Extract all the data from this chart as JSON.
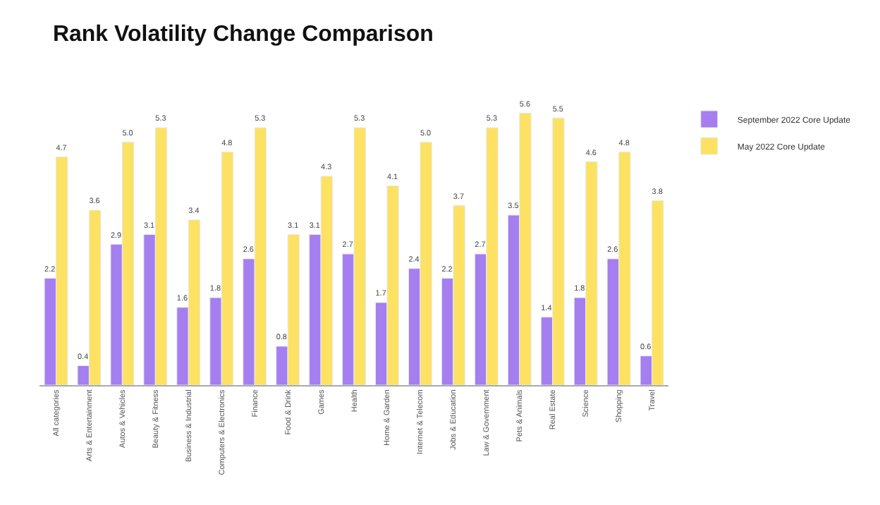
{
  "chart_data": {
    "type": "bar",
    "title": "Rank Volatility Change Comparison",
    "categories": [
      "All categories",
      "Arts & Entertainment",
      "Autos & Vehicles",
      "Beauty & Fitness",
      "Business & Industrial",
      "Computers & Electronics",
      "Finance",
      "Food & Drink",
      "Games",
      "Health",
      "Home & Garden",
      "Internet & Telecom",
      "Jobs & Education",
      "Law & Government",
      "Pets & Animals",
      "Real Estate",
      "Science",
      "Shopping",
      "Travel"
    ],
    "series": [
      {
        "name": "September 2022 Core Update",
        "color": "#a57ef0",
        "values": [
          2.2,
          0.4,
          2.9,
          3.1,
          1.6,
          1.8,
          2.6,
          0.8,
          3.1,
          2.7,
          1.7,
          2.4,
          2.2,
          2.7,
          3.5,
          1.4,
          1.8,
          2.6,
          0.6
        ],
        "value_labels": [
          "2.2",
          "0.4",
          "2.9",
          "3.1",
          "1.6",
          "1.8",
          "2.6",
          "0.8",
          "3.1",
          "2.7",
          "1.7",
          "2.4",
          "2.2",
          "2.7",
          "3.5",
          "1.4",
          "1.8",
          "2.6",
          "0.6"
        ]
      },
      {
        "name": "May 2022 Core Update",
        "color": "#fde163",
        "values": [
          4.7,
          3.6,
          5.0,
          5.3,
          3.4,
          4.8,
          5.3,
          3.1,
          4.3,
          5.3,
          4.1,
          5.0,
          3.7,
          5.3,
          5.6,
          5.5,
          4.6,
          4.8,
          3.8
        ],
        "value_labels": [
          "4.7",
          "3.6",
          "5.0",
          "5.3",
          "3.4",
          "4.8",
          "5.3",
          "3.1",
          "4.3",
          "5.3",
          "4.1",
          "5.0",
          "3.7",
          "5.3",
          "5.6",
          "5.5",
          "4.6",
          "4.8",
          "3.8"
        ]
      }
    ],
    "legend": "top right",
    "tick_labels": "x"
  }
}
